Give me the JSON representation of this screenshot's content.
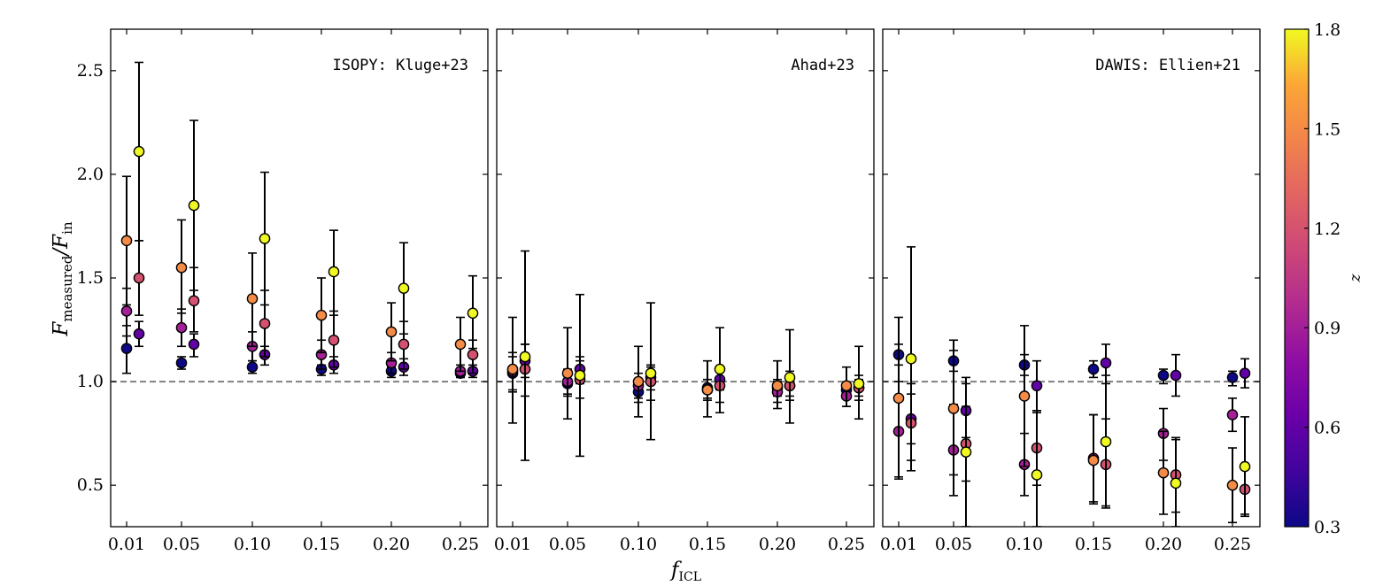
{
  "chart_data": {
    "type": "scatter",
    "xlabel": "f_ICL",
    "ylabel": "F_measured / F_in",
    "colorbar": {
      "label": "z",
      "range": [
        0.3,
        1.8
      ],
      "ticks": [
        "0.3",
        "0.6",
        "0.9",
        "1.2",
        "1.5",
        "1.8"
      ],
      "colormap": "plasma"
    },
    "x_categories": [
      "0.01",
      "0.05",
      "0.10",
      "0.15",
      "0.20",
      "0.25"
    ],
    "ylim": [
      0.3,
      2.7
    ],
    "y_ticks": [
      "0.5",
      "1.0",
      "1.5",
      "2.0",
      "2.5"
    ],
    "reference_line": 1.0,
    "colors": {
      "reference_line": "#808080",
      "errorbar": "#000000"
    },
    "panels": [
      {
        "title": "ISOPY: Kluge+23",
        "points": [
          {
            "x": "0.01",
            "z": 0.3,
            "y": 1.16,
            "lo": 1.04,
            "hi": 1.27
          },
          {
            "x": "0.01",
            "z": 0.9,
            "y": 1.34,
            "lo": 1.22,
            "hi": 1.45
          },
          {
            "x": "0.01",
            "z": 1.5,
            "y": 1.68,
            "lo": 1.37,
            "hi": 1.99
          },
          {
            "x": "0.01",
            "z": 0.6,
            "y": 1.23,
            "lo": 1.17,
            "hi": 1.29
          },
          {
            "x": "0.01",
            "z": 1.2,
            "y": 1.5,
            "lo": 1.32,
            "hi": 1.68
          },
          {
            "x": "0.01",
            "z": 1.8,
            "y": 2.11,
            "lo": 1.68,
            "hi": 2.54
          },
          {
            "x": "0.05",
            "z": 0.3,
            "y": 1.09,
            "lo": 1.06,
            "hi": 1.12
          },
          {
            "x": "0.05",
            "z": 0.9,
            "y": 1.26,
            "lo": 1.17,
            "hi": 1.35
          },
          {
            "x": "0.05",
            "z": 1.5,
            "y": 1.55,
            "lo": 1.33,
            "hi": 1.78
          },
          {
            "x": "0.05",
            "z": 0.6,
            "y": 1.18,
            "lo": 1.12,
            "hi": 1.23
          },
          {
            "x": "0.05",
            "z": 1.2,
            "y": 1.39,
            "lo": 1.24,
            "hi": 1.55
          },
          {
            "x": "0.05",
            "z": 1.8,
            "y": 1.85,
            "lo": 1.44,
            "hi": 2.26
          },
          {
            "x": "0.10",
            "z": 0.3,
            "y": 1.07,
            "lo": 1.04,
            "hi": 1.1
          },
          {
            "x": "0.10",
            "z": 0.9,
            "y": 1.17,
            "lo": 1.1,
            "hi": 1.24
          },
          {
            "x": "0.10",
            "z": 1.5,
            "y": 1.4,
            "lo": 1.17,
            "hi": 1.62
          },
          {
            "x": "0.10",
            "z": 0.6,
            "y": 1.13,
            "lo": 1.08,
            "hi": 1.17
          },
          {
            "x": "0.10",
            "z": 1.2,
            "y": 1.28,
            "lo": 1.12,
            "hi": 1.44
          },
          {
            "x": "0.10",
            "z": 1.8,
            "y": 1.69,
            "lo": 1.37,
            "hi": 2.01
          },
          {
            "x": "0.15",
            "z": 0.3,
            "y": 1.06,
            "lo": 1.03,
            "hi": 1.08
          },
          {
            "x": "0.15",
            "z": 0.9,
            "y": 1.13,
            "lo": 1.06,
            "hi": 1.2
          },
          {
            "x": "0.15",
            "z": 1.5,
            "y": 1.32,
            "lo": 1.14,
            "hi": 1.5
          },
          {
            "x": "0.15",
            "z": 0.6,
            "y": 1.08,
            "lo": 1.04,
            "hi": 1.12
          },
          {
            "x": "0.15",
            "z": 1.2,
            "y": 1.2,
            "lo": 1.07,
            "hi": 1.34
          },
          {
            "x": "0.15",
            "z": 1.8,
            "y": 1.53,
            "lo": 1.32,
            "hi": 1.73
          },
          {
            "x": "0.20",
            "z": 0.3,
            "y": 1.05,
            "lo": 1.02,
            "hi": 1.07
          },
          {
            "x": "0.20",
            "z": 0.9,
            "y": 1.09,
            "lo": 1.04,
            "hi": 1.14
          },
          {
            "x": "0.20",
            "z": 1.5,
            "y": 1.24,
            "lo": 1.1,
            "hi": 1.38
          },
          {
            "x": "0.20",
            "z": 0.6,
            "y": 1.07,
            "lo": 1.03,
            "hi": 1.11
          },
          {
            "x": "0.20",
            "z": 1.2,
            "y": 1.18,
            "lo": 1.06,
            "hi": 1.29
          },
          {
            "x": "0.20",
            "z": 1.8,
            "y": 1.45,
            "lo": 1.23,
            "hi": 1.67
          },
          {
            "x": "0.25",
            "z": 0.3,
            "y": 1.04,
            "lo": 1.02,
            "hi": 1.06
          },
          {
            "x": "0.25",
            "z": 0.9,
            "y": 1.05,
            "lo": 1.02,
            "hi": 1.08
          },
          {
            "x": "0.25",
            "z": 1.5,
            "y": 1.18,
            "lo": 1.05,
            "hi": 1.31
          },
          {
            "x": "0.25",
            "z": 0.6,
            "y": 1.05,
            "lo": 1.02,
            "hi": 1.08
          },
          {
            "x": "0.25",
            "z": 1.2,
            "y": 1.13,
            "lo": 1.04,
            "hi": 1.2
          },
          {
            "x": "0.25",
            "z": 1.8,
            "y": 1.33,
            "lo": 1.16,
            "hi": 1.51
          }
        ]
      },
      {
        "title": "Ahad+23",
        "points": [
          {
            "x": "0.01",
            "z": 0.3,
            "y": 1.04,
            "lo": 0.96,
            "hi": 1.12
          },
          {
            "x": "0.01",
            "z": 0.9,
            "y": 1.05,
            "lo": 0.95,
            "hi": 1.14
          },
          {
            "x": "0.01",
            "z": 1.5,
            "y": 1.06,
            "lo": 0.8,
            "hi": 1.31
          },
          {
            "x": "0.01",
            "z": 0.6,
            "y": 1.1,
            "lo": 1.02,
            "hi": 1.18
          },
          {
            "x": "0.01",
            "z": 1.2,
            "y": 1.06,
            "lo": 0.93,
            "hi": 1.18
          },
          {
            "x": "0.01",
            "z": 1.8,
            "y": 1.12,
            "lo": 0.62,
            "hi": 1.63
          },
          {
            "x": "0.05",
            "z": 0.3,
            "y": 0.99,
            "lo": 0.93,
            "hi": 1.05
          },
          {
            "x": "0.05",
            "z": 0.9,
            "y": 1.0,
            "lo": 0.94,
            "hi": 1.06
          },
          {
            "x": "0.05",
            "z": 1.5,
            "y": 1.04,
            "lo": 0.82,
            "hi": 1.26
          },
          {
            "x": "0.05",
            "z": 0.6,
            "y": 1.06,
            "lo": 0.99,
            "hi": 1.12
          },
          {
            "x": "0.05",
            "z": 1.2,
            "y": 1.01,
            "lo": 0.92,
            "hi": 1.1
          },
          {
            "x": "0.05",
            "z": 1.8,
            "y": 1.03,
            "lo": 0.64,
            "hi": 1.42
          },
          {
            "x": "0.10",
            "z": 0.3,
            "y": 0.95,
            "lo": 0.9,
            "hi": 1.0
          },
          {
            "x": "0.10",
            "z": 0.9,
            "y": 0.98,
            "lo": 0.92,
            "hi": 1.04
          },
          {
            "x": "0.10",
            "z": 1.5,
            "y": 1.0,
            "lo": 0.83,
            "hi": 1.17
          },
          {
            "x": "0.10",
            "z": 0.6,
            "y": 1.02,
            "lo": 0.96,
            "hi": 1.07
          },
          {
            "x": "0.10",
            "z": 1.2,
            "y": 1.0,
            "lo": 0.91,
            "hi": 1.08
          },
          {
            "x": "0.10",
            "z": 1.8,
            "y": 1.04,
            "lo": 0.72,
            "hi": 1.38
          },
          {
            "x": "0.15",
            "z": 0.3,
            "y": 0.97,
            "lo": 0.92,
            "hi": 1.01
          },
          {
            "x": "0.15",
            "z": 0.9,
            "y": 0.96,
            "lo": 0.91,
            "hi": 1.01
          },
          {
            "x": "0.15",
            "z": 1.5,
            "y": 0.96,
            "lo": 0.83,
            "hi": 1.1
          },
          {
            "x": "0.15",
            "z": 0.6,
            "y": 1.01,
            "lo": 0.96,
            "hi": 1.06
          },
          {
            "x": "0.15",
            "z": 1.2,
            "y": 0.98,
            "lo": 0.9,
            "hi": 1.06
          },
          {
            "x": "0.15",
            "z": 1.8,
            "y": 1.06,
            "lo": 0.85,
            "hi": 1.26
          },
          {
            "x": "0.20",
            "z": 0.3,
            "y": 0.97,
            "lo": 0.93,
            "hi": 1.01
          },
          {
            "x": "0.20",
            "z": 0.9,
            "y": 0.95,
            "lo": 0.9,
            "hi": 1.0
          },
          {
            "x": "0.20",
            "z": 1.5,
            "y": 0.98,
            "lo": 0.87,
            "hi": 1.1
          },
          {
            "x": "0.20",
            "z": 0.6,
            "y": 0.98,
            "lo": 0.93,
            "hi": 1.02
          },
          {
            "x": "0.20",
            "z": 1.2,
            "y": 0.98,
            "lo": 0.91,
            "hi": 1.05
          },
          {
            "x": "0.20",
            "z": 1.8,
            "y": 1.02,
            "lo": 0.8,
            "hi": 1.25
          },
          {
            "x": "0.25",
            "z": 0.3,
            "y": 0.96,
            "lo": 0.93,
            "hi": 0.99
          },
          {
            "x": "0.25",
            "z": 0.9,
            "y": 0.93,
            "lo": 0.88,
            "hi": 0.97
          },
          {
            "x": "0.25",
            "z": 1.5,
            "y": 0.98,
            "lo": 0.88,
            "hi": 1.07
          },
          {
            "x": "0.25",
            "z": 0.6,
            "y": 0.97,
            "lo": 0.93,
            "hi": 1.01
          },
          {
            "x": "0.25",
            "z": 1.2,
            "y": 0.97,
            "lo": 0.91,
            "hi": 1.03
          },
          {
            "x": "0.25",
            "z": 1.8,
            "y": 0.99,
            "lo": 0.82,
            "hi": 1.17
          }
        ]
      },
      {
        "title": "DAWIS: Ellien+21",
        "points": [
          {
            "x": "0.01",
            "z": 0.3,
            "y": 1.13,
            "lo": 1.08,
            "hi": 1.18
          },
          {
            "x": "0.01",
            "z": 0.9,
            "y": 0.76,
            "lo": 0.53,
            "hi": 1.0
          },
          {
            "x": "0.01",
            "z": 1.5,
            "y": 0.92,
            "lo": 0.54,
            "hi": 1.31
          },
          {
            "x": "0.01",
            "z": 0.6,
            "y": 0.82,
            "lo": 0.7,
            "hi": 0.94
          },
          {
            "x": "0.01",
            "z": 1.2,
            "y": 0.8,
            "lo": 0.62,
            "hi": 0.99
          },
          {
            "x": "0.01",
            "z": 1.8,
            "y": 1.11,
            "lo": 0.57,
            "hi": 1.65
          },
          {
            "x": "0.05",
            "z": 0.3,
            "y": 1.1,
            "lo": 1.05,
            "hi": 1.15
          },
          {
            "x": "0.05",
            "z": 0.9,
            "y": 0.67,
            "lo": 0.45,
            "hi": 0.89
          },
          {
            "x": "0.05",
            "z": 1.5,
            "y": 0.87,
            "lo": 0.55,
            "hi": 1.2
          },
          {
            "x": "0.05",
            "z": 0.6,
            "y": 0.86,
            "lo": 0.73,
            "hi": 0.99
          },
          {
            "x": "0.05",
            "z": 1.2,
            "y": 0.7,
            "lo": 0.52,
            "hi": 0.88
          },
          {
            "x": "0.05",
            "z": 1.8,
            "y": 0.66,
            "lo": 0.3,
            "hi": 1.02
          },
          {
            "x": "0.10",
            "z": 0.3,
            "y": 1.08,
            "lo": 1.03,
            "hi": 1.13
          },
          {
            "x": "0.10",
            "z": 0.9,
            "y": 0.6,
            "lo": 0.45,
            "hi": 0.75
          },
          {
            "x": "0.10",
            "z": 1.5,
            "y": 0.93,
            "lo": 0.59,
            "hi": 1.27
          },
          {
            "x": "0.10",
            "z": 0.6,
            "y": 0.98,
            "lo": 0.86,
            "hi": 1.1
          },
          {
            "x": "0.10",
            "z": 1.2,
            "y": 0.68,
            "lo": 0.5,
            "hi": 0.86
          },
          {
            "x": "0.10",
            "z": 1.8,
            "y": 0.55,
            "lo": 0.3,
            "hi": 0.85
          },
          {
            "x": "0.15",
            "z": 0.3,
            "y": 1.06,
            "lo": 1.02,
            "hi": 1.1
          },
          {
            "x": "0.15",
            "z": 0.9,
            "y": 0.63,
            "lo": 0.42,
            "hi": 0.84
          },
          {
            "x": "0.15",
            "z": 1.5,
            "y": 0.62,
            "lo": 0.41,
            "hi": 0.84
          },
          {
            "x": "0.15",
            "z": 0.6,
            "y": 1.09,
            "lo": 0.99,
            "hi": 1.18
          },
          {
            "x": "0.15",
            "z": 1.2,
            "y": 0.6,
            "lo": 0.39,
            "hi": 0.82
          },
          {
            "x": "0.15",
            "z": 1.8,
            "y": 0.71,
            "lo": 0.4,
            "hi": 1.03
          },
          {
            "x": "0.20",
            "z": 0.3,
            "y": 1.03,
            "lo": 0.99,
            "hi": 1.06
          },
          {
            "x": "0.20",
            "z": 0.9,
            "y": 0.75,
            "lo": 0.62,
            "hi": 0.87
          },
          {
            "x": "0.20",
            "z": 1.5,
            "y": 0.56,
            "lo": 0.36,
            "hi": 0.76
          },
          {
            "x": "0.20",
            "z": 0.6,
            "y": 1.03,
            "lo": 0.93,
            "hi": 1.13
          },
          {
            "x": "0.20",
            "z": 1.2,
            "y": 0.55,
            "lo": 0.37,
            "hi": 0.73
          },
          {
            "x": "0.20",
            "z": 1.8,
            "y": 0.51,
            "lo": 0.3,
            "hi": 0.72
          },
          {
            "x": "0.25",
            "z": 0.3,
            "y": 1.02,
            "lo": 0.98,
            "hi": 1.05
          },
          {
            "x": "0.25",
            "z": 0.9,
            "y": 0.84,
            "lo": 0.76,
            "hi": 0.92
          },
          {
            "x": "0.25",
            "z": 1.5,
            "y": 0.5,
            "lo": 0.32,
            "hi": 0.68
          },
          {
            "x": "0.25",
            "z": 0.6,
            "y": 1.04,
            "lo": 0.97,
            "hi": 1.11
          },
          {
            "x": "0.25",
            "z": 1.2,
            "y": 0.48,
            "lo": 0.36,
            "hi": 0.6
          },
          {
            "x": "0.25",
            "z": 1.8,
            "y": 0.59,
            "lo": 0.35,
            "hi": 0.83
          }
        ]
      }
    ]
  }
}
